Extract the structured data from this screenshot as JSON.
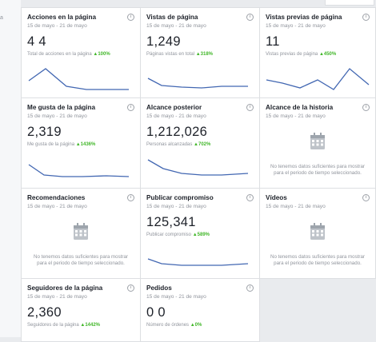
{
  "sidebar": {
    "fragment": "a"
  },
  "cards": [
    {
      "title": "Acciones en la página",
      "date": "15 de mayo - 21 de mayo",
      "value": "4 4",
      "sub": "Total de acciones en la página",
      "pct": "▲100%"
    },
    {
      "title": "Vistas de página",
      "date": "15 de mayo - 21 de mayo",
      "value": "1,249",
      "sub": "Páginas vistas en total",
      "pct": "▲318%"
    },
    {
      "title": "Vistas previas de página",
      "date": "15 de mayo - 21 de mayo",
      "value": "11",
      "sub": "Vistas previas de página",
      "pct": "▲450%"
    },
    {
      "title": "Me gusta de la página",
      "date": "15 de mayo - 21 de mayo",
      "value": "2,319",
      "sub": "Me gusta de la página",
      "pct": "▲1436%"
    },
    {
      "title": "Alcance posterior",
      "date": "15 de mayo - 21 de mayo",
      "value": "1,212,026",
      "sub": "Personas alcanzadas",
      "pct": "▲702%"
    },
    {
      "title": "Alcance de la historia",
      "date": "15 de mayo - 21 de mayo",
      "empty": "No tenemos datos suficientes para mostrar para el periodo de tiempo seleccionado."
    },
    {
      "title": "Recomendaciones",
      "date": "15 de mayo - 21 de mayo",
      "empty": "No tenemos datos suficientes para mostrar para el periodo de tiempo seleccionado."
    },
    {
      "title": "Publicar compromiso",
      "date": "15 de mayo - 21 de mayo",
      "value": "125,341",
      "sub": "Publicar compromiso",
      "pct": "▲589%"
    },
    {
      "title": "Vídeos",
      "date": "15 de mayo - 21 de mayo",
      "empty": "No tenemos datos suficientes para mostrar para el periodo de tiempo seleccionado."
    },
    {
      "title": "Seguidores de la página",
      "date": "15 de mayo - 21 de mayo",
      "value": "2,360",
      "sub": "Seguidores de la página",
      "pct": "▲1442%"
    },
    {
      "title": "Pedidos",
      "date": "15 de mayo - 21 de mayo",
      "value": "0 0",
      "sub": "Número de órdenes",
      "pct": "▲0%"
    }
  ],
  "colors": {
    "line": "#4267b2",
    "positive": "#42b72a"
  },
  "icons": {
    "info": "info-icon",
    "calendar": "calendar-icon"
  }
}
